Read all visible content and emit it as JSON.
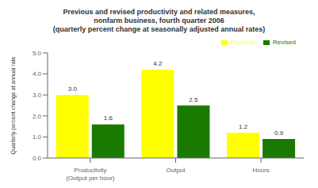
{
  "chart_data": {
    "type": "bar",
    "title": "Previous and revised productivity and related measures,\nnonfarm business, fourth quarter 2006\n(quarterly percent change at seasonally adjusted annual rates)",
    "ylabel": "Quarterly percent change at annual rate",
    "categories": [
      "Productivity\n(Output per hour)",
      "Output",
      "Hours"
    ],
    "series": [
      {
        "name": "Previous",
        "color": "#ffff00",
        "values": [
          3.0,
          4.2,
          1.2
        ],
        "value_labels": [
          "3.0",
          "4.2",
          "1.2"
        ]
      },
      {
        "name": "Revised",
        "color": "#1a7a00",
        "values": [
          1.6,
          2.5,
          0.9
        ],
        "value_labels": [
          "1.6",
          "2.5",
          "0.9"
        ]
      }
    ],
    "ylim": [
      0,
      5.0
    ],
    "yticks": [
      {
        "value": 0.0,
        "label": "0.0"
      },
      {
        "value": 1.0,
        "label": "1.0"
      },
      {
        "value": 2.0,
        "label": "2.0"
      },
      {
        "value": 3.0,
        "label": "3.0"
      },
      {
        "value": 4.0,
        "label": "4.0"
      },
      {
        "value": 5.0,
        "label": "5.0"
      }
    ],
    "data_labels": true,
    "legend": "upper right",
    "grid": false
  }
}
